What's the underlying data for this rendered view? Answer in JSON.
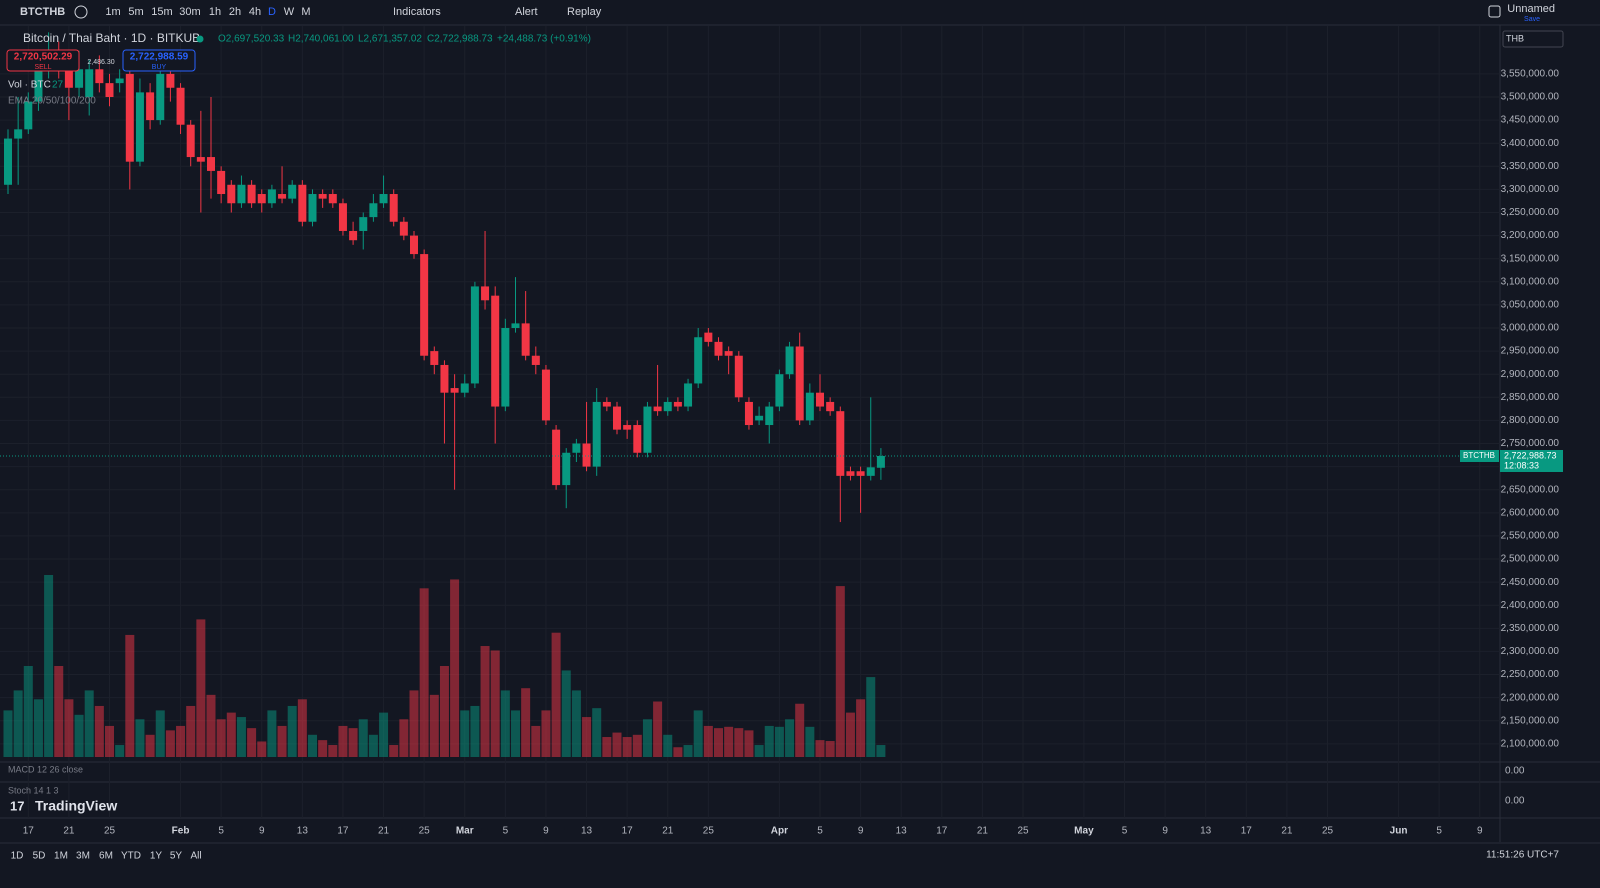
{
  "toolbar": {
    "symbol": "BTCTHB",
    "intervals": [
      "1m",
      "5m",
      "15m",
      "30m",
      "1h",
      "2h",
      "4h",
      "D",
      "W",
      "M"
    ],
    "active_interval": "D",
    "indicators": "Indicators",
    "alert": "Alert",
    "replay": "Replay",
    "layout_name": "Unnamed",
    "save": "Save"
  },
  "legend": {
    "title": "Bitcoin / Thai Baht · 1D · BITKUB",
    "open": "O2,697,520.33",
    "high": "H2,740,061.00",
    "low": "L2,671,357.02",
    "close": "C2,722,988.73",
    "change": "+24,488.73 (+0.91%)",
    "sell_price": "2,720,502.29",
    "sell": "SELL",
    "spread": "2,486.30",
    "buy_price": "2,722,988.59",
    "buy": "BUY",
    "volume_label": "Vol · BTC",
    "ema": "EMA 20/50/100/200"
  },
  "currency": "THB",
  "price_tag": {
    "symbol": "BTCTHB",
    "price": "2,722,988.73",
    "countdown": "12:08:33"
  },
  "panes": {
    "macd": "MACD 12 26 close",
    "macd_value": "0.00",
    "stoch": "Stoch 14 1 3",
    "stoch_value": "0.00"
  },
  "brand": "TradingView",
  "ranges": [
    "1D",
    "5D",
    "1M",
    "3M",
    "6M",
    "YTD",
    "1Y",
    "5Y",
    "All"
  ],
  "clock": "11:51:26 UTC+7",
  "chart_data": {
    "type": "candlestick",
    "up_color": "#089981",
    "down_color": "#f23645",
    "open": [
      3310000,
      3410000,
      3430000,
      3490000,
      3560000,
      3600000,
      3570000,
      3520000,
      3500000,
      3560000,
      3530000,
      3530000,
      3550000,
      3360000,
      3510000,
      3450000,
      3550000,
      3520000,
      3440000,
      3370000,
      3370000,
      3340000,
      3310000,
      3270000,
      3310000,
      3290000,
      3270000,
      3290000,
      3280000,
      3310000,
      3230000,
      3290000,
      3290000,
      3270000,
      3210000,
      3210000,
      3240000,
      3270000,
      3290000,
      3230000,
      3200000,
      3160000,
      2950000,
      2920000,
      2870000,
      2860000,
      2880000,
      3090000,
      3070000,
      2830000,
      3000000,
      3010000,
      2940000,
      2910000,
      2780000,
      2660000,
      2730000,
      2750000,
      2700000,
      2840000,
      2830000,
      2790000,
      2790000,
      2730000,
      2830000,
      2820000,
      2840000,
      2830000,
      2880000,
      2990000,
      2970000,
      2950000,
      2940000,
      2840000,
      2800000,
      2790000,
      2830000,
      2900000,
      2960000,
      2800000,
      2860000,
      2840000,
      2820000,
      2690000,
      2690000,
      2680000,
      2697520.33
    ],
    "high": [
      3430000,
      3500000,
      3510000,
      3580000,
      3640000,
      3620000,
      3590000,
      3600000,
      3580000,
      3590000,
      3550000,
      3560000,
      3560000,
      3540000,
      3530000,
      3570000,
      3570000,
      3530000,
      3450000,
      3470000,
      3500000,
      3350000,
      3320000,
      3330000,
      3320000,
      3300000,
      3310000,
      3350000,
      3320000,
      3320000,
      3300000,
      3300000,
      3300000,
      3280000,
      3230000,
      3250000,
      3290000,
      3330000,
      3300000,
      3240000,
      3210000,
      3170000,
      2960000,
      2930000,
      2900000,
      2900000,
      3100000,
      3210000,
      3090000,
      3020000,
      3110000,
      3080000,
      2960000,
      2920000,
      2790000,
      2740000,
      2760000,
      2840000,
      2870000,
      2850000,
      2840000,
      2800000,
      2800000,
      2840000,
      2920000,
      2850000,
      2850000,
      2890000,
      3000000,
      3000000,
      2980000,
      2960000,
      2950000,
      2850000,
      2830000,
      2840000,
      2910000,
      2970000,
      2990000,
      2880000,
      2900000,
      2850000,
      2830000,
      2700000,
      2700000,
      2850000,
      2740061
    ],
    "low": [
      3290000,
      3310000,
      3420000,
      3470000,
      3540000,
      3540000,
      3450000,
      3500000,
      3460000,
      3510000,
      3480000,
      3510000,
      3300000,
      3350000,
      3430000,
      3440000,
      3490000,
      3420000,
      3350000,
      3250000,
      3280000,
      3270000,
      3250000,
      3260000,
      3260000,
      3250000,
      3260000,
      3270000,
      3270000,
      3220000,
      3220000,
      3260000,
      3260000,
      3200000,
      3180000,
      3170000,
      3230000,
      3260000,
      3220000,
      3190000,
      3150000,
      2930000,
      2900000,
      2750000,
      2650000,
      2850000,
      2870000,
      3040000,
      2750000,
      2820000,
      2990000,
      2930000,
      2900000,
      2790000,
      2650000,
      2610000,
      2710000,
      2690000,
      2680000,
      2820000,
      2770000,
      2760000,
      2720000,
      2720000,
      2810000,
      2810000,
      2820000,
      2820000,
      2870000,
      2960000,
      2930000,
      2900000,
      2840000,
      2780000,
      2790000,
      2750000,
      2820000,
      2890000,
      2790000,
      2790000,
      2820000,
      2810000,
      2580000,
      2670000,
      2600000,
      2670000,
      2671357.02
    ],
    "close": [
      3410000,
      3430000,
      3490000,
      3560000,
      3600000,
      3570000,
      3520000,
      3560000,
      3560000,
      3530000,
      3500000,
      3540000,
      3360000,
      3510000,
      3450000,
      3550000,
      3520000,
      3440000,
      3370000,
      3360000,
      3340000,
      3290000,
      3270000,
      3310000,
      3270000,
      3270000,
      3300000,
      3280000,
      3310000,
      3230000,
      3290000,
      3280000,
      3270000,
      3210000,
      3190000,
      3240000,
      3270000,
      3290000,
      3230000,
      3200000,
      3160000,
      2940000,
      2920000,
      2860000,
      2860000,
      2880000,
      3090000,
      3060000,
      2830000,
      3000000,
      3010000,
      2940000,
      2920000,
      2800000,
      2660000,
      2730000,
      2750000,
      2700000,
      2840000,
      2830000,
      2780000,
      2780000,
      2730000,
      2830000,
      2820000,
      2840000,
      2830000,
      2880000,
      2980000,
      2970000,
      2940000,
      2940000,
      2850000,
      2790000,
      2810000,
      2830000,
      2900000,
      2960000,
      2800000,
      2860000,
      2830000,
      2820000,
      2680000,
      2680000,
      2680000,
      2698500,
      2722988.73
    ],
    "volume": [
      105,
      150,
      205,
      130,
      410,
      205,
      130,
      95,
      150,
      115,
      70,
      27,
      275,
      85,
      50,
      105,
      60,
      70,
      115,
      310,
      140,
      85,
      100,
      90,
      65,
      35,
      105,
      70,
      115,
      130,
      50,
      38,
      27,
      70,
      65,
      85,
      50,
      100,
      27,
      85,
      150,
      380,
      140,
      205,
      400,
      105,
      115,
      250,
      240,
      150,
      105,
      155,
      70,
      105,
      280,
      195,
      150,
      90,
      110,
      45,
      55,
      45,
      50,
      85,
      125,
      50,
      22,
      27,
      105,
      70,
      65,
      68,
      65,
      60,
      27,
      70,
      68,
      85,
      120,
      68,
      38,
      36,
      385,
      100,
      130,
      180,
      27
    ],
    "ylim": [
      2065000,
      3645000
    ],
    "yticks": [
      {
        "value": 2100000,
        "label": "2,100,000.00"
      },
      {
        "value": 2150000,
        "label": "2,150,000.00"
      },
      {
        "value": 2200000,
        "label": "2,200,000.00"
      },
      {
        "value": 2250000,
        "label": "2,250,000.00"
      },
      {
        "value": 2300000,
        "label": "2,300,000.00"
      },
      {
        "value": 2350000,
        "label": "2,350,000.00"
      },
      {
        "value": 2400000,
        "label": "2,400,000.00"
      },
      {
        "value": 2450000,
        "label": "2,450,000.00"
      },
      {
        "value": 2500000,
        "label": "2,500,000.00"
      },
      {
        "value": 2550000,
        "label": "2,550,000.00"
      },
      {
        "value": 2600000,
        "label": "2,600,000.00"
      },
      {
        "value": 2650000,
        "label": "2,650,000.00"
      },
      {
        "value": 2700000,
        "label": "2,700,000.00"
      },
      {
        "value": 2750000,
        "label": "2,750,000.00"
      },
      {
        "value": 2800000,
        "label": "2,800,000.00"
      },
      {
        "value": 2850000,
        "label": "2,850,000.00"
      },
      {
        "value": 2900000,
        "label": "2,900,000.00"
      },
      {
        "value": 2950000,
        "label": "2,950,000.00"
      },
      {
        "value": 3000000,
        "label": "3,000,000.00"
      },
      {
        "value": 3050000,
        "label": "3,050,000.00"
      },
      {
        "value": 3100000,
        "label": "3,100,000.00"
      },
      {
        "value": 3150000,
        "label": "3,150,000.00"
      },
      {
        "value": 3200000,
        "label": "3,200,000.00"
      },
      {
        "value": 3250000,
        "label": "3,250,000.00"
      },
      {
        "value": 3300000,
        "label": "3,300,000.00"
      },
      {
        "value": 3350000,
        "label": "3,350,000.00"
      },
      {
        "value": 3400000,
        "label": "3,400,000.00"
      },
      {
        "value": 3450000,
        "label": "3,450,000.00"
      },
      {
        "value": 3500000,
        "label": "3,500,000.00"
      },
      {
        "value": 3550000,
        "label": "3,550,000.00"
      }
    ],
    "xticks": [
      {
        "value": 2,
        "label": "17"
      },
      {
        "value": 6,
        "label": "21"
      },
      {
        "value": 10,
        "label": "25"
      },
      {
        "value": 17,
        "label": "Feb"
      },
      {
        "value": 21,
        "label": "5"
      },
      {
        "value": 25,
        "label": "9"
      },
      {
        "value": 29,
        "label": "13"
      },
      {
        "value": 33,
        "label": "17"
      },
      {
        "value": 37,
        "label": "21"
      },
      {
        "value": 41,
        "label": "25"
      },
      {
        "value": 45,
        "label": "Mar"
      },
      {
        "value": 49,
        "label": "5"
      },
      {
        "value": 53,
        "label": "9"
      },
      {
        "value": 57,
        "label": "13"
      },
      {
        "value": 61,
        "label": "17"
      },
      {
        "value": 65,
        "label": "21"
      },
      {
        "value": 69,
        "label": "25"
      },
      {
        "value": 76,
        "label": "Apr"
      },
      {
        "value": 80,
        "label": "5"
      },
      {
        "value": 84,
        "label": "9"
      },
      {
        "value": 88,
        "label": "13"
      },
      {
        "value": 92,
        "label": "17"
      },
      {
        "value": 96,
        "label": "21"
      },
      {
        "value": 100,
        "label": "25"
      },
      {
        "value": 106,
        "label": "May"
      },
      {
        "value": 110,
        "label": "5"
      },
      {
        "value": 114,
        "label": "9"
      },
      {
        "value": 118,
        "label": "13"
      },
      {
        "value": 122,
        "label": "17"
      },
      {
        "value": 126,
        "label": "21"
      },
      {
        "value": 130,
        "label": "25"
      },
      {
        "value": 137,
        "label": "Jun"
      },
      {
        "value": 141,
        "label": "5"
      },
      {
        "value": 145,
        "label": "9"
      }
    ],
    "grid": true
  }
}
